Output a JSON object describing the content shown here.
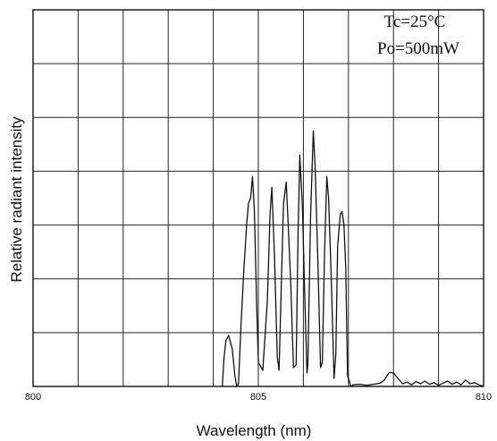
{
  "chart_data": {
    "type": "line",
    "title": "",
    "xlabel": "Wavelength (nm)",
    "ylabel": "Relative radiant intensity",
    "xlim": [
      800,
      810
    ],
    "ylim": [
      0,
      7
    ],
    "x_ticks": [
      {
        "value": 800,
        "label": "800"
      },
      {
        "value": 805,
        "label": "805"
      },
      {
        "value": 810,
        "label": "810"
      }
    ],
    "grid": true,
    "legend": "none",
    "annotations": [
      "Tc=25°C",
      "Po=500mW"
    ],
    "series": [
      {
        "color": "#111111",
        "x": [
          804.2,
          804.24,
          804.28,
          804.34,
          804.42,
          804.48,
          804.52,
          804.56,
          804.62,
          804.68,
          804.74,
          804.78,
          804.83,
          804.87,
          804.91,
          804.96,
          805.0,
          805.1,
          805.2,
          805.26,
          805.3,
          805.36,
          805.42,
          805.46,
          805.52,
          805.56,
          805.62,
          805.66,
          805.72,
          805.78,
          805.84,
          805.88,
          805.92,
          805.98,
          806.03,
          806.08,
          806.1,
          806.16,
          806.22,
          806.26,
          806.32,
          806.38,
          806.42,
          806.47,
          806.52,
          806.56,
          806.62,
          806.68,
          806.72,
          806.76,
          806.82,
          806.86,
          806.9,
          806.94,
          806.98,
          807.02,
          807.05,
          807.06,
          807.1,
          807.25,
          807.4,
          807.55,
          807.7,
          807.8,
          807.9,
          808.0,
          808.1,
          808.2,
          808.3,
          808.4,
          808.5,
          808.6,
          808.7,
          808.8,
          808.9,
          809.0,
          809.1,
          809.2,
          809.3,
          809.4,
          809.5,
          809.6,
          809.7,
          809.8,
          809.9,
          810.0
        ],
        "values": [
          0.0,
          0.55,
          0.85,
          0.95,
          0.7,
          0.2,
          0.0,
          0.05,
          1.2,
          2.2,
          3.0,
          3.4,
          3.5,
          3.9,
          3.3,
          1.6,
          0.45,
          0.3,
          1.6,
          3.2,
          3.7,
          2.4,
          0.55,
          0.3,
          2.2,
          3.4,
          3.8,
          3.05,
          1.9,
          0.35,
          0.4,
          2.8,
          4.3,
          3.3,
          1.7,
          0.25,
          0.4,
          3.2,
          4.75,
          4.1,
          2.4,
          0.35,
          0.45,
          2.5,
          3.9,
          3.5,
          2.0,
          0.15,
          0.6,
          2.6,
          3.2,
          3.25,
          3.0,
          2.2,
          0.2,
          0.1,
          0.0,
          0.0,
          0.03,
          0.04,
          0.02,
          0.04,
          0.06,
          0.12,
          0.26,
          0.25,
          0.15,
          0.05,
          0.08,
          0.03,
          0.09,
          0.05,
          0.1,
          0.04,
          0.07,
          0.02,
          0.06,
          0.1,
          0.04,
          0.08,
          0.03,
          0.12,
          0.05,
          0.07,
          0.03,
          0.0
        ]
      }
    ]
  }
}
